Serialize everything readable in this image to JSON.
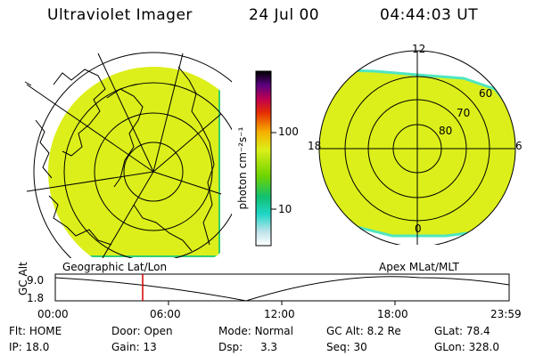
{
  "header": {
    "title": "Ultraviolet Imager",
    "date": "24 Jul 00",
    "time": "04:44:03 UT"
  },
  "colorbar": {
    "unit_label": "photon cm⁻²s⁻¹",
    "ticks": [
      "100",
      "10"
    ]
  },
  "polar_plot": {
    "clock_labels": [
      "12",
      "18",
      "6",
      "0"
    ],
    "lat_labels": [
      "60",
      "70",
      "80"
    ]
  },
  "plot_labels": {
    "geographic": "Geographic Lat/Lon",
    "apex": "Apex MLat/MLT"
  },
  "altitude_plot": {
    "ylabel": "GC Alt",
    "yticks": [
      "9.0",
      "1.8"
    ],
    "xticks": [
      "00:00",
      "06:00",
      "12:00",
      "18:00",
      "23:59"
    ],
    "marker_time": "04:44:03"
  },
  "info": {
    "row1": [
      {
        "label": "Flt:",
        "value": "HOME"
      },
      {
        "label": "Door:",
        "value": "Open"
      },
      {
        "label": "Mode:",
        "value": "Normal"
      },
      {
        "label": "GC Alt:",
        "value": "8.2 Re"
      },
      {
        "label": "GLat:",
        "value": "78.4"
      }
    ],
    "row2": [
      {
        "label": "IP:",
        "value": "18.0"
      },
      {
        "label": "Gain:",
        "value": "13"
      },
      {
        "label": "Dsp:",
        "value": "3.3"
      },
      {
        "label": "Seq:",
        "value": "30"
      },
      {
        "label": "GLon:",
        "value": "328.0"
      }
    ]
  },
  "colors": {
    "image_fill": "#dcef1a",
    "image_edge": "#22c96a",
    "marker": "#d40000"
  }
}
